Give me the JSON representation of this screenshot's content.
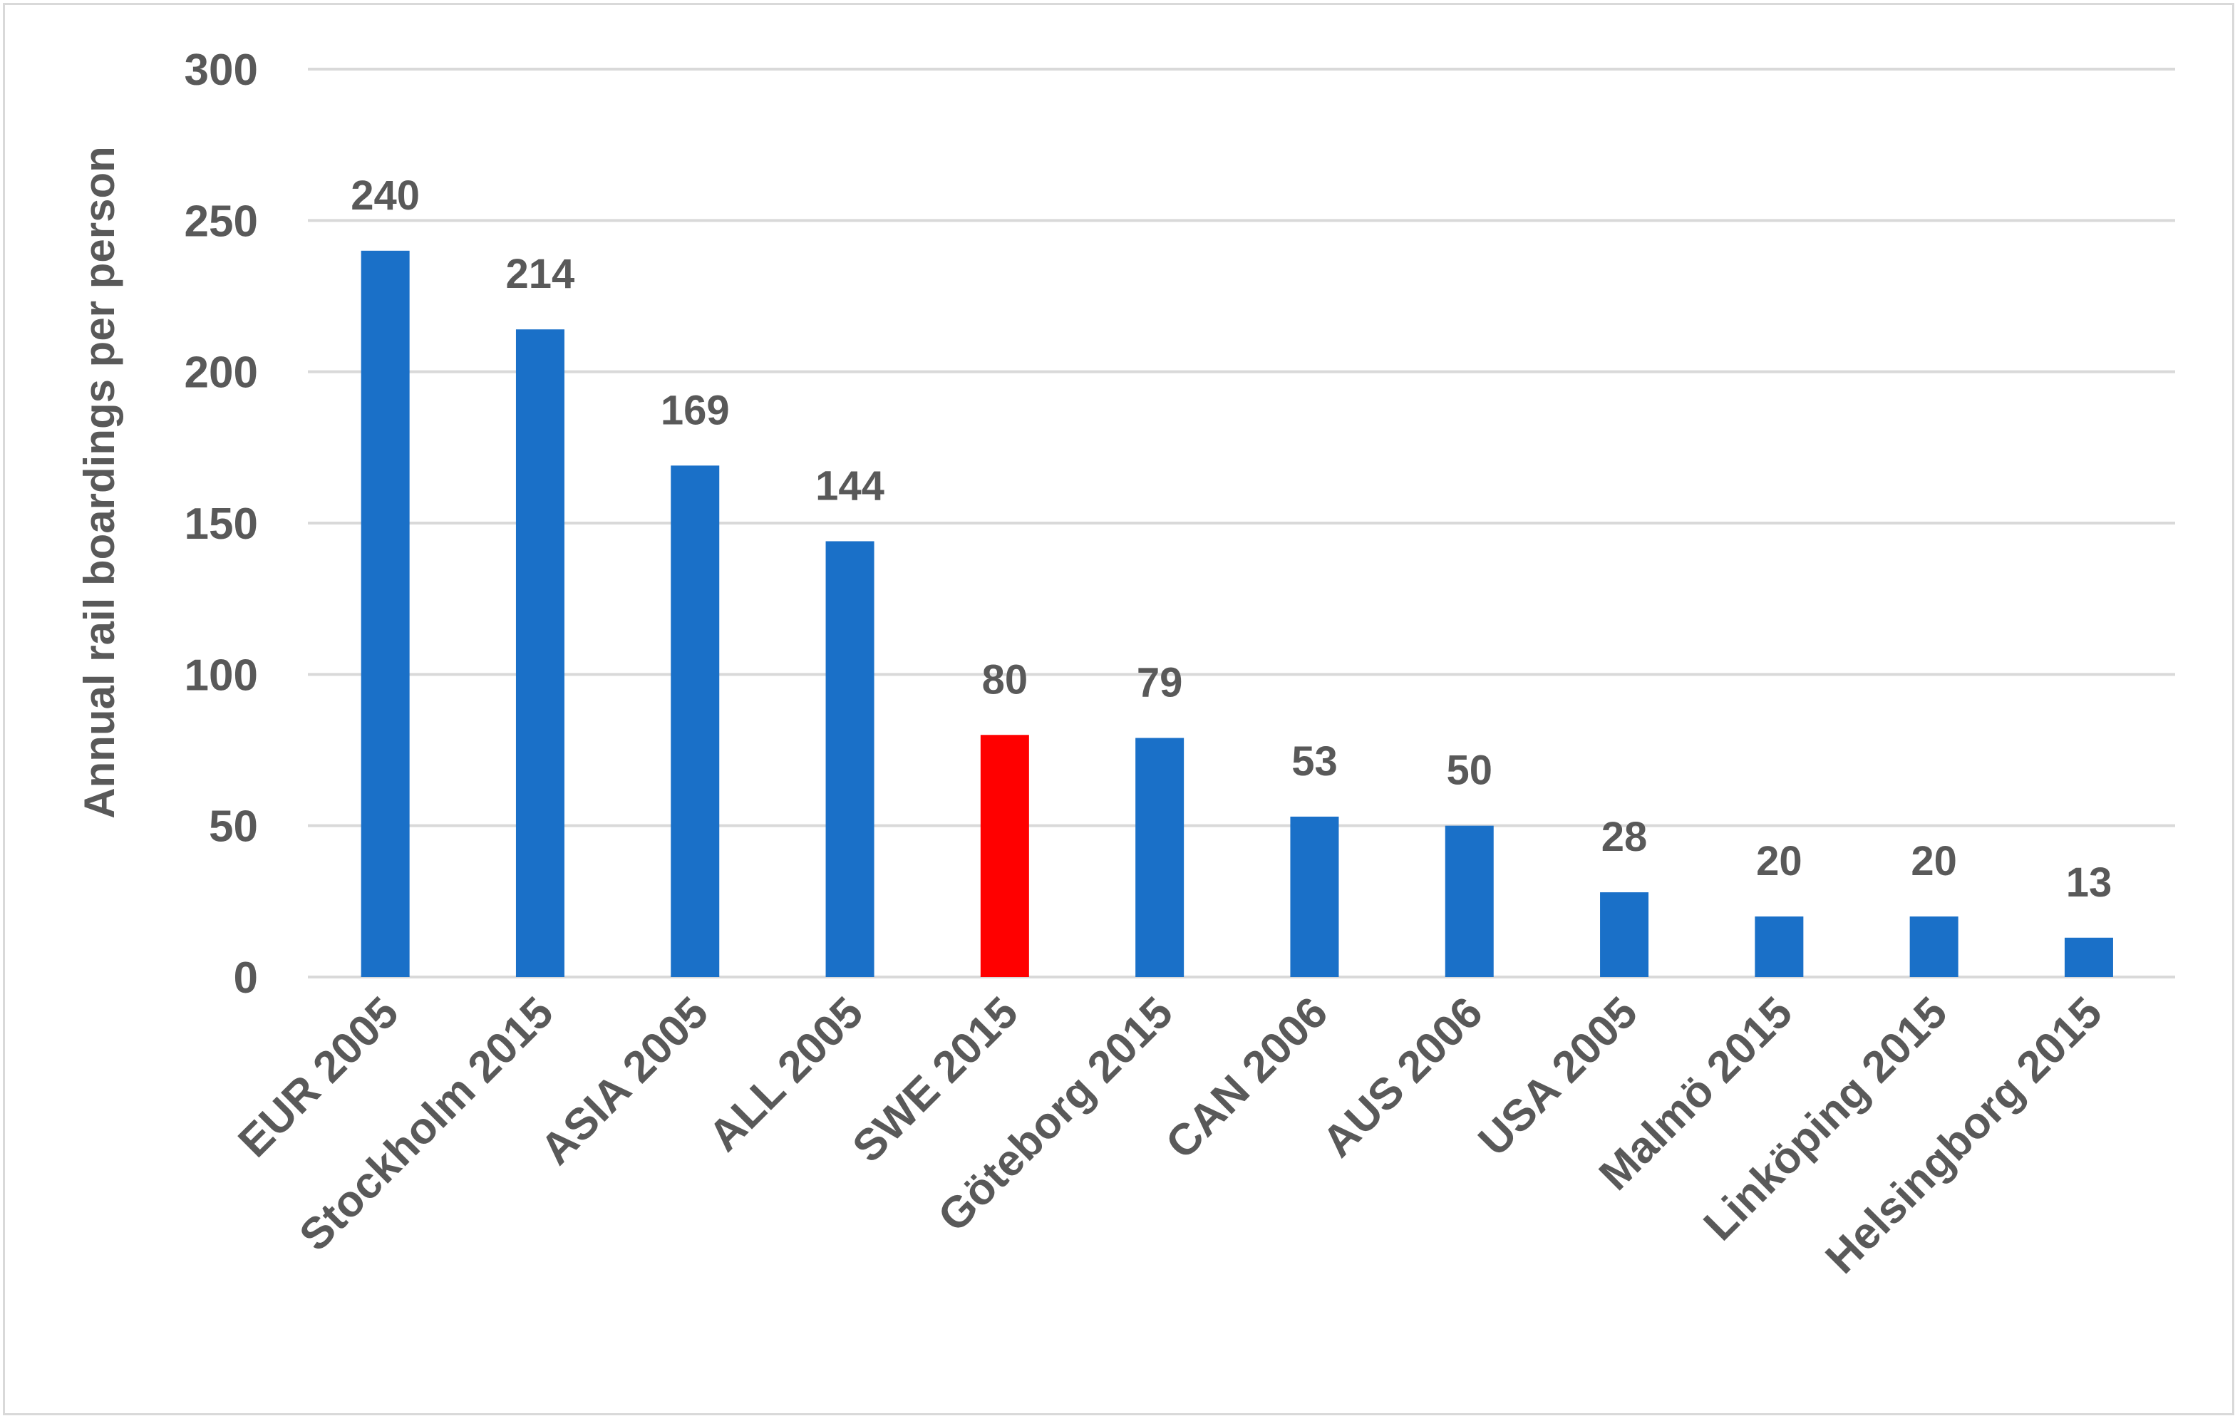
{
  "chart_data": {
    "type": "bar",
    "title": "",
    "xlabel": "",
    "ylabel": "Annual rail boardings per person",
    "ylim": [
      0,
      300
    ],
    "yticks": [
      0,
      50,
      100,
      150,
      200,
      250,
      300
    ],
    "grid": true,
    "legend": "none",
    "categories": [
      "EUR 2005",
      "Stockholm 2015",
      "ASIA 2005",
      "ALL 2005",
      "SWE 2015",
      "Göteborg 2015",
      "CAN 2006",
      "AUS 2006",
      "USA 2005",
      "Malmö 2015",
      "Linköping 2015",
      "Helsingborg 2015"
    ],
    "values": [
      240,
      214,
      169,
      144,
      80,
      79,
      53,
      50,
      28,
      20,
      20,
      13
    ],
    "data_labels": [
      "240",
      "214",
      "169",
      "144",
      "80",
      "79",
      "53",
      "50",
      "28",
      "20",
      "20",
      "13"
    ],
    "colors": {
      "default_bar": "#1a70c8",
      "highlight_bar": "#ff0000",
      "gridline": "#d9d9d9",
      "text": "#595959",
      "axis_line": "#d9d9d9"
    },
    "highlight_category": "SWE 2015"
  }
}
